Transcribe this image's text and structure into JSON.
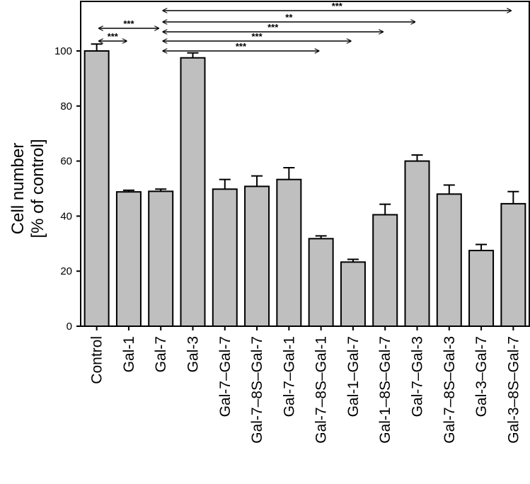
{
  "chart_data": {
    "type": "bar",
    "ylabel_lines": [
      "Cell number",
      "[% of control]"
    ],
    "xlabel": "",
    "ylim": [
      0,
      118
    ],
    "yticks": [
      0,
      20,
      40,
      60,
      80,
      100
    ],
    "grid": false,
    "bar_color": "#bfbfbf",
    "categories": [
      "Control",
      "Gal-1",
      "Gal-7",
      "Gal-3",
      "Gal-7–Gal-7",
      "Gal-7–8S–Gal-7",
      "Gal-7–Gal-1",
      "Gal-7–8S–Gal-1",
      "Gal-1–Gal-7",
      "Gal-1–8S–Gal-7",
      "Gal-7–Gal-3",
      "Gal-7–8S–Gal-3",
      "Gal-3–Gal-7",
      "Gal-3–8S–Gal-7"
    ],
    "values": [
      100,
      48.8,
      49,
      97.5,
      49.8,
      50.8,
      53.3,
      31.8,
      23.3,
      40.5,
      60,
      48,
      27.5,
      44.5
    ],
    "errors": [
      2.5,
      0.6,
      0.8,
      1.8,
      3.5,
      3.8,
      4.3,
      1.0,
      1.0,
      3.8,
      2.2,
      3.3,
      2.2,
      4.4
    ],
    "significance": [
      {
        "from": 0,
        "to": 1,
        "label": "***"
      },
      {
        "from": 0,
        "to": 2,
        "label": "***"
      },
      {
        "from": 2,
        "to": 13,
        "label": "***"
      },
      {
        "from": 2,
        "to": 10,
        "label": "**"
      },
      {
        "from": 2,
        "to": 9,
        "label": "***"
      },
      {
        "from": 2,
        "to": 8,
        "label": "***"
      },
      {
        "from": 2,
        "to": 7,
        "label": "***"
      }
    ]
  }
}
